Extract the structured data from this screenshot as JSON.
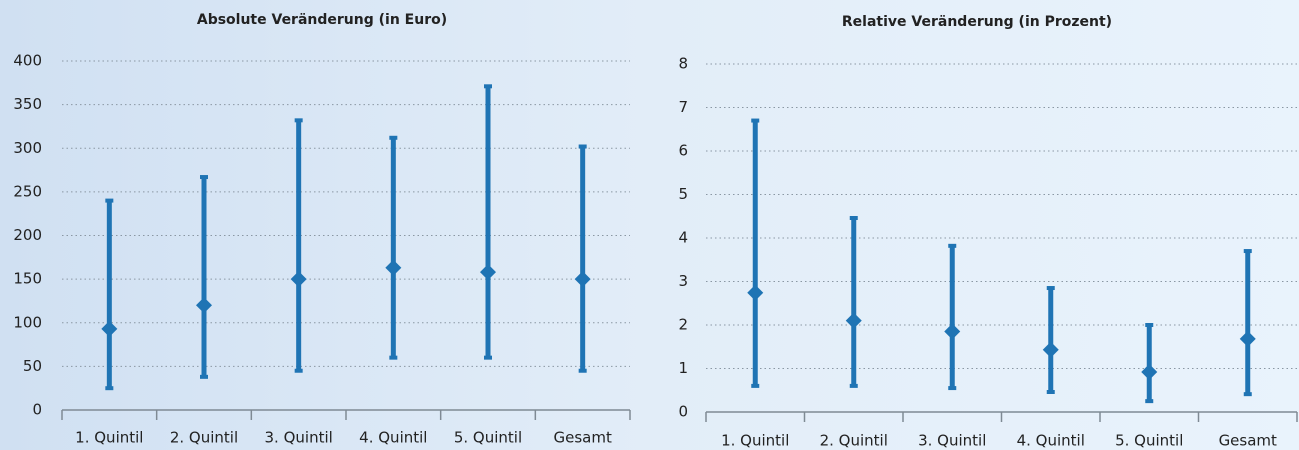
{
  "chart_data": [
    {
      "type": "range",
      "title": "Absolute Veränderung (in Euro)",
      "categories": [
        "1. Quintil",
        "2. Quintil",
        "3. Quintil",
        "4. Quintil",
        "5. Quintil",
        "Gesamt"
      ],
      "values": [
        93,
        120,
        150,
        163,
        158,
        150
      ],
      "low": [
        25,
        38,
        45,
        60,
        60,
        45
      ],
      "high": [
        240,
        267,
        332,
        312,
        371,
        302
      ],
      "color": "#1f74b4",
      "ylim": [
        0,
        400
      ],
      "yticks": [
        0,
        50,
        100,
        150,
        200,
        250,
        300,
        350,
        400
      ],
      "grid": true
    },
    {
      "type": "range",
      "title": "Relative Veränderung (in Prozent)",
      "categories": [
        "1. Quintil",
        "2. Quintil",
        "3. Quintil",
        "4. Quintil",
        "5. Quintil",
        "Gesamt"
      ],
      "values": [
        2.74,
        2.1,
        1.85,
        1.43,
        0.92,
        1.68
      ],
      "low": [
        0.6,
        0.6,
        0.55,
        0.46,
        0.25,
        0.41
      ],
      "high": [
        6.7,
        4.46,
        3.82,
        2.85,
        2.0,
        3.7
      ],
      "color": "#1f74b4",
      "ylim": [
        0,
        8
      ],
      "yticks": [
        0,
        1,
        2,
        3,
        4,
        5,
        6,
        7,
        8
      ],
      "grid": true
    }
  ]
}
